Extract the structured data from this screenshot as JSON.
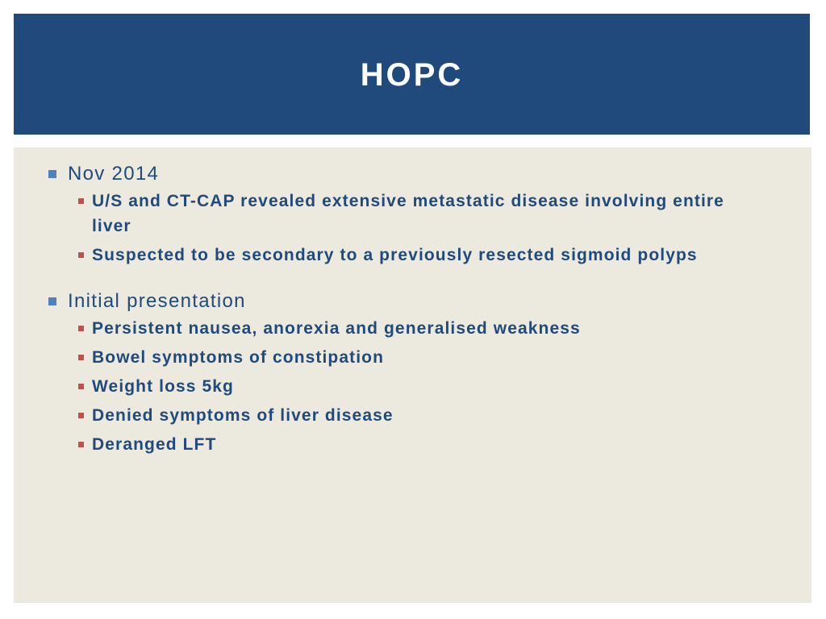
{
  "slide": {
    "title": "HOPC",
    "colors": {
      "title_bar": "#1f4a7b",
      "title_text": "#ffffff",
      "content_background": "#ece9df",
      "text": "#1f4a7b",
      "level1_bullet": "#4f81bd",
      "level2_bullet": "#c0504d"
    },
    "sections": [
      {
        "heading": "Nov 2014",
        "items": [
          "U/S and CT-CAP revealed extensive metastatic disease involving entire liver",
          "Suspected to be secondary to a previously resected sigmoid polyps"
        ]
      },
      {
        "heading": "Initial presentation",
        "items": [
          "Persistent nausea, anorexia and generalised weakness",
          "Bowel symptoms of constipation",
          "Weight loss 5kg",
          "Denied symptoms of liver disease",
          "Deranged LFT"
        ]
      }
    ]
  }
}
